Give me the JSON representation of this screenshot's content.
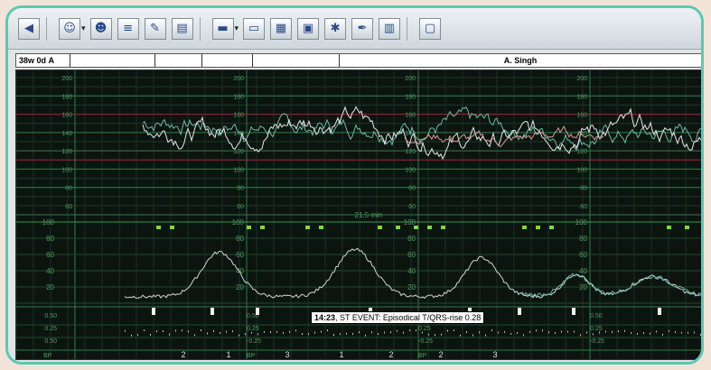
{
  "infobar": {
    "gest": "38w 0d",
    "field_a": "A",
    "patient": "A. Singh"
  },
  "toolbar": {
    "buttons": [
      {
        "name": "back-icon",
        "glyph": "◀"
      },
      {
        "name": "user-icon",
        "glyph": "☺"
      },
      {
        "name": "users-icon",
        "glyph": "☻"
      },
      {
        "name": "list-icon",
        "glyph": "≡"
      },
      {
        "name": "edit-icon",
        "glyph": "✎"
      },
      {
        "name": "document-icon",
        "glyph": "▤"
      },
      {
        "name": "bed-icon",
        "glyph": "▬"
      },
      {
        "name": "folder-icon",
        "glyph": "▭"
      },
      {
        "name": "chart-icon",
        "glyph": "▦"
      },
      {
        "name": "print-icon",
        "glyph": "▣"
      },
      {
        "name": "alarm-icon",
        "glyph": "✱"
      },
      {
        "name": "pen-icon",
        "glyph": "✒"
      },
      {
        "name": "trend-icon",
        "glyph": "▥"
      },
      {
        "name": "window-icon",
        "glyph": "▢"
      }
    ]
  },
  "chart_data": {
    "type": "line",
    "time_label": "21,5 min",
    "fhr_axis_labels": [
      "200",
      "180",
      "160",
      "140",
      "120",
      "100",
      "80",
      "60"
    ],
    "toco_axis_labels": [
      "100",
      "80",
      "60",
      "40",
      "20"
    ],
    "stan_axis_labels": [
      "0.50",
      "0.25",
      "-0.25",
      "-0.50"
    ],
    "stan_axis_labels_left": [
      "0.50",
      "0.25",
      "0.50"
    ],
    "st_event_numbers": [
      "2",
      "1",
      "3",
      "1",
      "2",
      "2",
      "3"
    ],
    "bottom_labels": [
      "BP",
      "BP",
      "BP"
    ],
    "event": {
      "time": "14:23",
      "text": "ST EVENT: Episodical T/QRS-rise 0.28"
    }
  }
}
